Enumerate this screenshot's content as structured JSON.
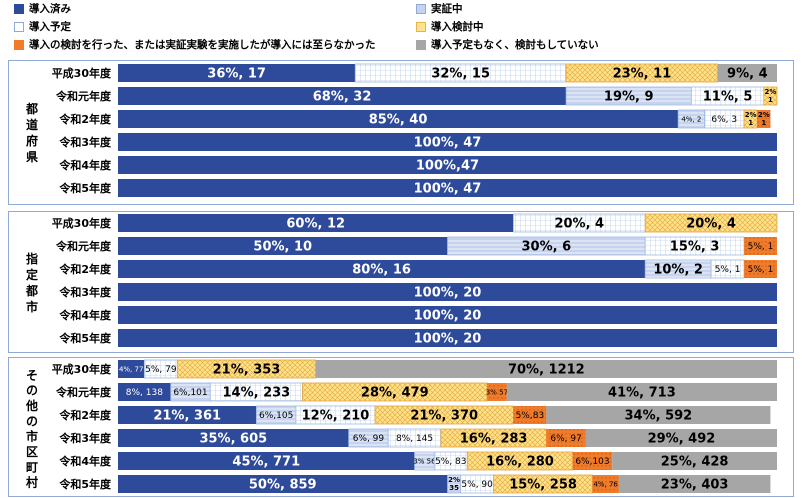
{
  "legend": {
    "implemented": "導入済み",
    "verifying": "実証中",
    "planned": "導入予定",
    "considering": "導入検討中",
    "not_adopted": "導入の検討を行った、または実証実験を実施したが導入には至らなかった",
    "none": "導入予定もなく、検討もしていない"
  },
  "colors": {
    "implemented": "#2e4a9a",
    "verifying": "#c5d3ee",
    "planned": "#ffffff",
    "considering": "#ffe28a",
    "not_adopted": "#f07c2a",
    "none": "#a6a6a6",
    "border": "#8faad8"
  },
  "chart_data": {
    "type": "bar",
    "orientation": "horizontal",
    "stacked": true,
    "unit": "percent",
    "series_keys": [
      "implemented",
      "verifying",
      "planned",
      "considering",
      "not_adopted",
      "none"
    ],
    "groups": [
      {
        "name": "都道府県",
        "categories": [
          "平成30年度",
          "令和元年度",
          "令和2年度",
          "令和3年度",
          "令和4年度",
          "令和5年度"
        ],
        "series": [
          {
            "key": "implemented",
            "values": [
              36,
              68,
              85,
              100,
              100,
              100
            ],
            "labels": [
              "36%, 17",
              "68%, 32",
              "85%, 40",
              "100%, 47",
              "100%,47",
              "100%, 47"
            ]
          },
          {
            "key": "verifying",
            "values": [
              0,
              19,
              4,
              0,
              0,
              0
            ],
            "labels": [
              "",
              "19%, 9",
              "4%, 2",
              "",
              "",
              ""
            ]
          },
          {
            "key": "planned",
            "values": [
              32,
              11,
              6,
              0,
              0,
              0
            ],
            "labels": [
              "32%, 15",
              "11%, 5",
              "6%, 3",
              "",
              "",
              ""
            ]
          },
          {
            "key": "considering",
            "values": [
              23,
              2,
              2,
              0,
              0,
              0
            ],
            "labels": [
              "23%, 11",
              "2% 1",
              "2% 1",
              "",
              "",
              ""
            ]
          },
          {
            "key": "not_adopted",
            "values": [
              0,
              0,
              2,
              0,
              0,
              0
            ],
            "labels": [
              "",
              "",
              "2% 1",
              "",
              "",
              ""
            ]
          },
          {
            "key": "none",
            "values": [
              9,
              0,
              0,
              0,
              0,
              0
            ],
            "labels": [
              "9%, 4",
              "",
              "",
              "",
              "",
              ""
            ]
          }
        ]
      },
      {
        "name": "指定都市",
        "categories": [
          "平成30年度",
          "令和元年度",
          "令和2年度",
          "令和3年度",
          "令和4年度",
          "令和5年度"
        ],
        "series": [
          {
            "key": "implemented",
            "values": [
              60,
              50,
              80,
              100,
              100,
              100
            ],
            "labels": [
              "60%, 12",
              "50%, 10",
              "80%, 16",
              "100%, 20",
              "100%, 20",
              "100%, 20"
            ]
          },
          {
            "key": "verifying",
            "values": [
              0,
              30,
              10,
              0,
              0,
              0
            ],
            "labels": [
              "",
              "30%, 6",
              "10%, 2",
              "",
              "",
              ""
            ]
          },
          {
            "key": "planned",
            "values": [
              20,
              15,
              5,
              0,
              0,
              0
            ],
            "labels": [
              "20%, 4",
              "15%, 3",
              "5%, 1",
              "",
              "",
              ""
            ]
          },
          {
            "key": "considering",
            "values": [
              20,
              0,
              0,
              0,
              0,
              0
            ],
            "labels": [
              "20%, 4",
              "",
              "",
              "",
              "",
              ""
            ]
          },
          {
            "key": "not_adopted",
            "values": [
              0,
              5,
              5,
              0,
              0,
              0
            ],
            "labels": [
              "",
              "5%, 1",
              "5%, 1",
              "",
              "",
              ""
            ]
          },
          {
            "key": "none",
            "values": [
              0,
              0,
              0,
              0,
              0,
              0
            ],
            "labels": [
              "",
              "",
              "",
              "",
              "",
              ""
            ]
          }
        ]
      },
      {
        "name": "その他の市区町村",
        "categories": [
          "平成30年度",
          "令和元年度",
          "令和2年度",
          "令和3年度",
          "令和4年度",
          "令和5年度"
        ],
        "series": [
          {
            "key": "implemented",
            "values": [
              4,
              8,
              21,
              35,
              45,
              50
            ],
            "labels": [
              "4%, 77",
              "8%, 138",
              "21%, 361",
              "35%, 605",
              "45%, 771",
              "50%, 859"
            ]
          },
          {
            "key": "verifying",
            "values": [
              0,
              6,
              6,
              6,
              3,
              2
            ],
            "labels": [
              "",
              "6%,101",
              "6%,105",
              "6%, 99",
              "3% 56",
              "2% 35"
            ]
          },
          {
            "key": "planned",
            "values": [
              5,
              14,
              12,
              8,
              5,
              5
            ],
            "labels": [
              "5%, 79",
              "14%, 233",
              "12%, 210",
              "8%, 145",
              "5%, 83",
              "5%, 90"
            ]
          },
          {
            "key": "considering",
            "values": [
              21,
              28,
              21,
              16,
              16,
              15
            ],
            "labels": [
              "21%, 353",
              "28%, 479",
              "21%, 370",
              "16%, 283",
              "16%, 280",
              "15%, 258"
            ]
          },
          {
            "key": "not_adopted",
            "values": [
              0,
              3,
              5,
              6,
              6,
              4
            ],
            "labels": [
              "",
              "3% 57",
              "5%,83",
              "6%, 97",
              "6%,103",
              "4%, 76"
            ]
          },
          {
            "key": "none",
            "values": [
              70,
              41,
              34,
              29,
              25,
              23
            ],
            "labels": [
              "70%, 1212",
              "41%, 713",
              "34%, 592",
              "29%, 492",
              "25%, 428",
              "23%, 403"
            ]
          }
        ]
      }
    ]
  }
}
